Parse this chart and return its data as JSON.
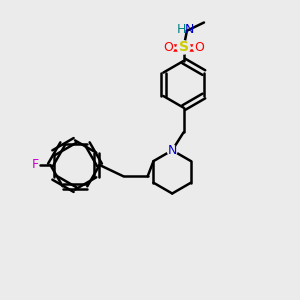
{
  "bg_color": "#ebebeb",
  "bond_color": "#000000",
  "N_color": "#0000cc",
  "S_color": "#cccc00",
  "O_color": "#ff0000",
  "F_color": "#cc00cc",
  "H_color": "#008080",
  "figsize": [
    3.0,
    3.0
  ],
  "dpi": 100,
  "xlim": [
    0,
    10
  ],
  "ylim": [
    0,
    10
  ]
}
